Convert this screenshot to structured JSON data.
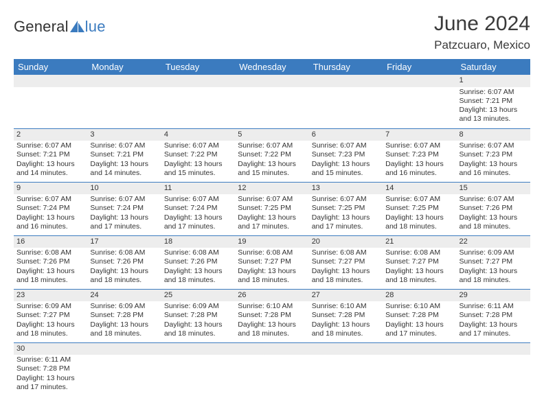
{
  "logo": {
    "text1": "General",
    "text2": "lue",
    "icon_color": "#3b7bbf"
  },
  "title": "June 2024",
  "location": "Patzcuaro, Mexico",
  "colors": {
    "header_bg": "#3b7bbf",
    "header_text": "#ffffff",
    "daynum_bg": "#ededed",
    "cell_border": "#3b7bbf",
    "body_text": "#333333"
  },
  "day_headers": [
    "Sunday",
    "Monday",
    "Tuesday",
    "Wednesday",
    "Thursday",
    "Friday",
    "Saturday"
  ],
  "weeks": [
    [
      null,
      null,
      null,
      null,
      null,
      null,
      {
        "n": 1,
        "sunrise": "6:07 AM",
        "sunset": "7:21 PM",
        "daylight": "13 hours and 13 minutes."
      }
    ],
    [
      {
        "n": 2,
        "sunrise": "6:07 AM",
        "sunset": "7:21 PM",
        "daylight": "13 hours and 14 minutes."
      },
      {
        "n": 3,
        "sunrise": "6:07 AM",
        "sunset": "7:21 PM",
        "daylight": "13 hours and 14 minutes."
      },
      {
        "n": 4,
        "sunrise": "6:07 AM",
        "sunset": "7:22 PM",
        "daylight": "13 hours and 15 minutes."
      },
      {
        "n": 5,
        "sunrise": "6:07 AM",
        "sunset": "7:22 PM",
        "daylight": "13 hours and 15 minutes."
      },
      {
        "n": 6,
        "sunrise": "6:07 AM",
        "sunset": "7:23 PM",
        "daylight": "13 hours and 15 minutes."
      },
      {
        "n": 7,
        "sunrise": "6:07 AM",
        "sunset": "7:23 PM",
        "daylight": "13 hours and 16 minutes."
      },
      {
        "n": 8,
        "sunrise": "6:07 AM",
        "sunset": "7:23 PM",
        "daylight": "13 hours and 16 minutes."
      }
    ],
    [
      {
        "n": 9,
        "sunrise": "6:07 AM",
        "sunset": "7:24 PM",
        "daylight": "13 hours and 16 minutes."
      },
      {
        "n": 10,
        "sunrise": "6:07 AM",
        "sunset": "7:24 PM",
        "daylight": "13 hours and 17 minutes."
      },
      {
        "n": 11,
        "sunrise": "6:07 AM",
        "sunset": "7:24 PM",
        "daylight": "13 hours and 17 minutes."
      },
      {
        "n": 12,
        "sunrise": "6:07 AM",
        "sunset": "7:25 PM",
        "daylight": "13 hours and 17 minutes."
      },
      {
        "n": 13,
        "sunrise": "6:07 AM",
        "sunset": "7:25 PM",
        "daylight": "13 hours and 17 minutes."
      },
      {
        "n": 14,
        "sunrise": "6:07 AM",
        "sunset": "7:25 PM",
        "daylight": "13 hours and 18 minutes."
      },
      {
        "n": 15,
        "sunrise": "6:07 AM",
        "sunset": "7:26 PM",
        "daylight": "13 hours and 18 minutes."
      }
    ],
    [
      {
        "n": 16,
        "sunrise": "6:08 AM",
        "sunset": "7:26 PM",
        "daylight": "13 hours and 18 minutes."
      },
      {
        "n": 17,
        "sunrise": "6:08 AM",
        "sunset": "7:26 PM",
        "daylight": "13 hours and 18 minutes."
      },
      {
        "n": 18,
        "sunrise": "6:08 AM",
        "sunset": "7:26 PM",
        "daylight": "13 hours and 18 minutes."
      },
      {
        "n": 19,
        "sunrise": "6:08 AM",
        "sunset": "7:27 PM",
        "daylight": "13 hours and 18 minutes."
      },
      {
        "n": 20,
        "sunrise": "6:08 AM",
        "sunset": "7:27 PM",
        "daylight": "13 hours and 18 minutes."
      },
      {
        "n": 21,
        "sunrise": "6:08 AM",
        "sunset": "7:27 PM",
        "daylight": "13 hours and 18 minutes."
      },
      {
        "n": 22,
        "sunrise": "6:09 AM",
        "sunset": "7:27 PM",
        "daylight": "13 hours and 18 minutes."
      }
    ],
    [
      {
        "n": 23,
        "sunrise": "6:09 AM",
        "sunset": "7:27 PM",
        "daylight": "13 hours and 18 minutes."
      },
      {
        "n": 24,
        "sunrise": "6:09 AM",
        "sunset": "7:28 PM",
        "daylight": "13 hours and 18 minutes."
      },
      {
        "n": 25,
        "sunrise": "6:09 AM",
        "sunset": "7:28 PM",
        "daylight": "13 hours and 18 minutes."
      },
      {
        "n": 26,
        "sunrise": "6:10 AM",
        "sunset": "7:28 PM",
        "daylight": "13 hours and 18 minutes."
      },
      {
        "n": 27,
        "sunrise": "6:10 AM",
        "sunset": "7:28 PM",
        "daylight": "13 hours and 18 minutes."
      },
      {
        "n": 28,
        "sunrise": "6:10 AM",
        "sunset": "7:28 PM",
        "daylight": "13 hours and 17 minutes."
      },
      {
        "n": 29,
        "sunrise": "6:11 AM",
        "sunset": "7:28 PM",
        "daylight": "13 hours and 17 minutes."
      }
    ],
    [
      {
        "n": 30,
        "sunrise": "6:11 AM",
        "sunset": "7:28 PM",
        "daylight": "13 hours and 17 minutes."
      },
      null,
      null,
      null,
      null,
      null,
      null
    ]
  ],
  "labels": {
    "sunrise": "Sunrise:",
    "sunset": "Sunset:",
    "daylight": "Daylight:"
  }
}
